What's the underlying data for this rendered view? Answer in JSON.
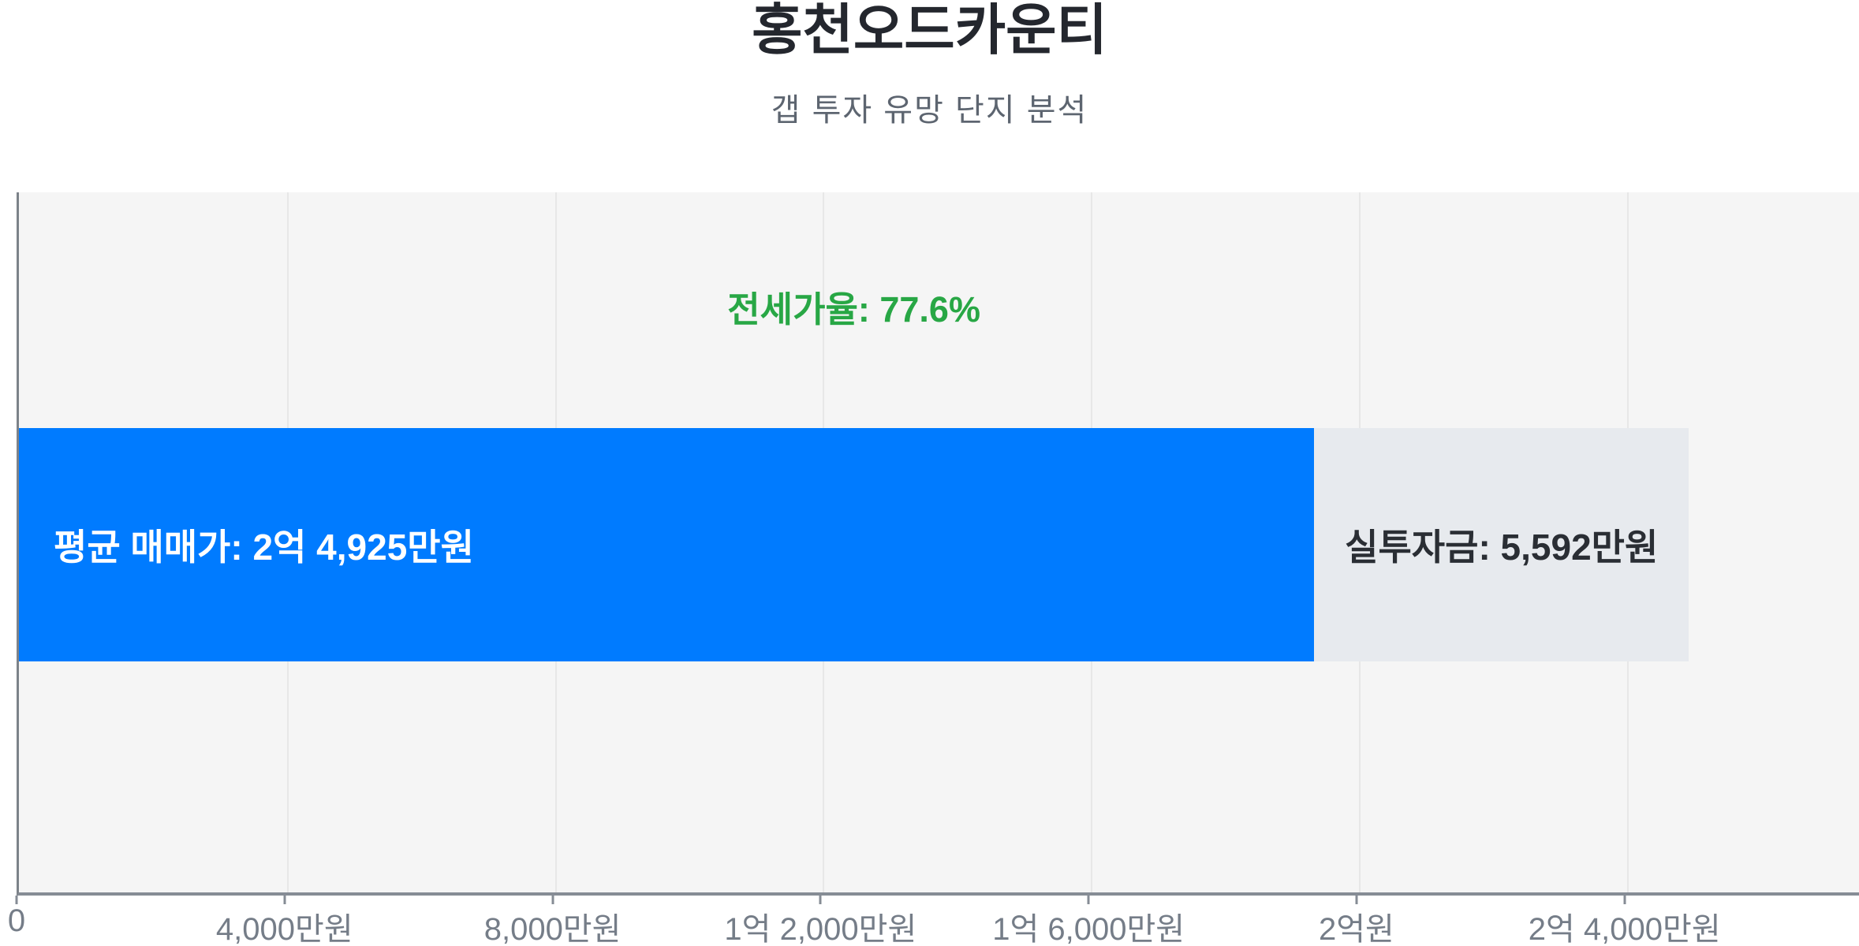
{
  "page": {
    "title": "홍천오드카운티",
    "subtitle": "갭 투자 유망 단지 분석"
  },
  "chart_data": {
    "type": "bar",
    "orientation": "horizontal",
    "stacked": true,
    "title": "홍천오드카운티",
    "subtitle": "갭 투자 유망 단지 분석",
    "unit": "만원",
    "sale_price_avg_manwon": 24925,
    "investment_gap_manwon": 5592,
    "jeonse_portion_manwon": 19333,
    "jeonse_ratio_pct": 77.6,
    "annotations": {
      "jeonse_ratio_label": "전세가율: 77.6%",
      "sale_price_label": "평균 매매가: 2억 4,925만원",
      "investment_label": "실투자금: 5,592만원"
    },
    "x_axis": {
      "min": 0,
      "max": 27500,
      "tick_step": 4000,
      "ticks": [
        {
          "value": 0,
          "label": "0"
        },
        {
          "value": 4000,
          "label": "4,000만원"
        },
        {
          "value": 8000,
          "label": "8,000만원"
        },
        {
          "value": 12000,
          "label": "1억 2,000만원"
        },
        {
          "value": 16000,
          "label": "1억 6,000만원"
        },
        {
          "value": 20000,
          "label": "2억원"
        },
        {
          "value": 24000,
          "label": "2억 4,000만원"
        }
      ]
    },
    "grid": true,
    "legend": "none",
    "colors": {
      "sale_bar": "#007bff",
      "gap_bar": "#e7eaee",
      "gap_bar_text": "#2a2e34",
      "ratio_text": "#28a745",
      "plot_bg": "#f5f5f5",
      "grid_line": "#e7e7e7",
      "axis_line": "#868c95",
      "tick_text": "#757d88",
      "title_text": "#24272e",
      "subtitle_text": "#5d6570"
    }
  }
}
